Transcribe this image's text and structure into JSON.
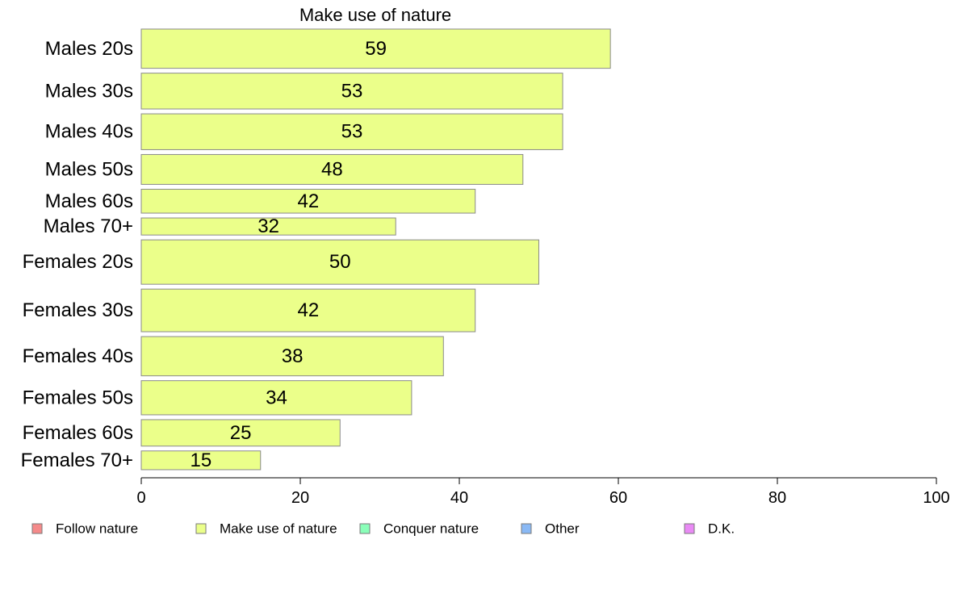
{
  "chart_data": {
    "type": "bar",
    "orientation": "horizontal",
    "title": "Make use of nature",
    "xlabel": "",
    "ylabel": "",
    "xlim": [
      0,
      100
    ],
    "x_ticks": [
      0,
      20,
      40,
      60,
      80,
      100
    ],
    "grid": false,
    "legend_position": "bottom",
    "categories": [
      "Males 20s",
      "Males 30s",
      "Males 40s",
      "Males 50s",
      "Males 60s",
      "Males 70+",
      "Females 20s",
      "Females 30s",
      "Females 40s",
      "Females 50s",
      "Females 60s",
      "Females 70+"
    ],
    "series": [
      {
        "name": "Make use of nature",
        "color": "#ebff8a",
        "values": [
          59,
          53,
          53,
          48,
          42,
          32,
          50,
          42,
          38,
          34,
          25,
          15
        ],
        "value_labels": [
          "59",
          "53",
          "53",
          "48",
          "42",
          "32",
          "50",
          "42",
          "38",
          "34",
          "25",
          "15"
        ]
      }
    ],
    "bar_thickness_relative": [
      46,
      42,
      42,
      35,
      28,
      20,
      52,
      50,
      46,
      40,
      31,
      22
    ],
    "legend": [
      {
        "label": "Follow nature",
        "color": "#f58a8a"
      },
      {
        "label": "Make use of nature",
        "color": "#ebff8a"
      },
      {
        "label": "Conquer nature",
        "color": "#8affb9"
      },
      {
        "label": "Other",
        "color": "#8ab9f5"
      },
      {
        "label": "D.K.",
        "color": "#e98af5"
      }
    ]
  }
}
